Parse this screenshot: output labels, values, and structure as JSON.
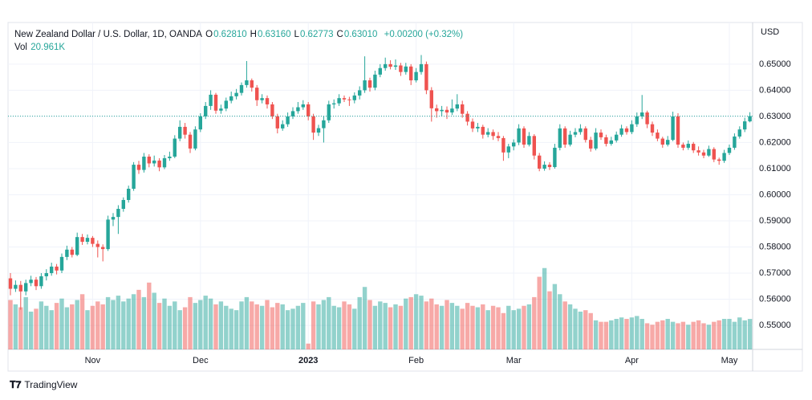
{
  "chart_data": {
    "type": "candlestick",
    "title": "New Zealand Dollar / U.S. Dollar, 1D, OANDA",
    "summary": [
      {
        "label": "O",
        "value": "0.62810"
      },
      {
        "label": "H",
        "value": "0.63160"
      },
      {
        "label": "L",
        "value": "0.62773"
      },
      {
        "label": "C",
        "value": "0.63010"
      }
    ],
    "change": "+0.00200 (+0.32%)",
    "volume_name": "Vol",
    "volume_value": "20.961K",
    "y_axis_label": "USD",
    "colors": {
      "up": "#26a69a",
      "down": "#ef5350"
    },
    "grid": true,
    "ylim": [
      0.5408,
      0.6598
    ],
    "yticks": [
      {
        "value": 0.55,
        "label": "0.55000"
      },
      {
        "value": 0.56,
        "label": "0.56000"
      },
      {
        "value": 0.57,
        "label": "0.57000"
      },
      {
        "value": 0.58,
        "label": "0.58000"
      },
      {
        "value": 0.59,
        "label": "0.59000"
      },
      {
        "value": 0.6,
        "label": "0.60000"
      },
      {
        "value": 0.61,
        "label": "0.61000"
      },
      {
        "value": 0.62,
        "label": "0.62000"
      },
      {
        "value": 0.63,
        "label": "0.63000"
      },
      {
        "value": 0.64,
        "label": "0.64000"
      },
      {
        "value": 0.65,
        "label": "0.65000"
      }
    ],
    "y2lim": [
      0,
      214
    ],
    "categories": [
      null,
      null,
      null,
      null,
      null,
      null,
      null,
      null,
      null,
      null,
      null,
      null,
      null,
      null,
      null,
      null,
      "Nov",
      null,
      null,
      null,
      null,
      null,
      null,
      null,
      null,
      null,
      null,
      null,
      null,
      null,
      null,
      null,
      null,
      null,
      null,
      null,
      null,
      "Dec",
      null,
      null,
      null,
      null,
      null,
      null,
      null,
      null,
      null,
      null,
      null,
      null,
      null,
      null,
      null,
      null,
      null,
      null,
      null,
      null,
      "2023",
      null,
      null,
      null,
      null,
      null,
      null,
      null,
      null,
      null,
      null,
      null,
      null,
      null,
      null,
      null,
      null,
      null,
      null,
      null,
      null,
      "Feb",
      null,
      null,
      null,
      null,
      null,
      null,
      null,
      null,
      null,
      null,
      null,
      null,
      null,
      null,
      null,
      null,
      null,
      null,
      "Mar",
      null,
      null,
      null,
      null,
      null,
      null,
      null,
      null,
      null,
      null,
      null,
      null,
      null,
      null,
      null,
      null,
      null,
      null,
      null,
      null,
      null,
      null,
      "Apr",
      null,
      null,
      null,
      null,
      null,
      null,
      null,
      null,
      null,
      null,
      null,
      null,
      null,
      null,
      null,
      null,
      null,
      null,
      "May",
      null,
      null,
      null,
      null
    ],
    "ohlc": [
      [
        0.568,
        0.57,
        0.5615,
        0.564
      ],
      [
        0.564,
        0.5672,
        0.5628,
        0.5655
      ],
      [
        0.5655,
        0.567,
        0.556,
        0.563
      ],
      [
        0.563,
        0.5675,
        0.5615,
        0.5662
      ],
      [
        0.5662,
        0.569,
        0.565,
        0.5675
      ],
      [
        0.5675,
        0.5685,
        0.5635,
        0.565
      ],
      [
        0.565,
        0.57,
        0.564,
        0.5688
      ],
      [
        0.5688,
        0.5715,
        0.5672,
        0.57
      ],
      [
        0.57,
        0.574,
        0.569,
        0.5725
      ],
      [
        0.5725,
        0.5735,
        0.5695,
        0.571
      ],
      [
        0.571,
        0.5775,
        0.57,
        0.5762
      ],
      [
        0.5762,
        0.5805,
        0.575,
        0.579
      ],
      [
        0.579,
        0.58,
        0.576,
        0.577
      ],
      [
        0.577,
        0.5855,
        0.5765,
        0.5838
      ],
      [
        0.5838,
        0.585,
        0.5808,
        0.582
      ],
      [
        0.582,
        0.5848,
        0.581,
        0.5835
      ],
      [
        0.5835,
        0.5842,
        0.58,
        0.5812
      ],
      [
        0.5812,
        0.5825,
        0.576,
        0.58
      ],
      [
        0.58,
        0.581,
        0.5745,
        0.5792
      ],
      [
        0.5792,
        0.592,
        0.5785,
        0.5905
      ],
      [
        0.5905,
        0.593,
        0.588,
        0.5915
      ],
      [
        0.5915,
        0.596,
        0.585,
        0.5946
      ],
      [
        0.5946,
        0.599,
        0.5935,
        0.598
      ],
      [
        0.598,
        0.6035,
        0.597,
        0.6023
      ],
      [
        0.6023,
        0.6125,
        0.6015,
        0.6115
      ],
      [
        0.6115,
        0.613,
        0.608,
        0.6095
      ],
      [
        0.6095,
        0.616,
        0.6085,
        0.6146
      ],
      [
        0.6146,
        0.6155,
        0.6105,
        0.612
      ],
      [
        0.612,
        0.615,
        0.6108,
        0.6131
      ],
      [
        0.6131,
        0.614,
        0.609,
        0.6105
      ],
      [
        0.6105,
        0.6152,
        0.6098,
        0.614
      ],
      [
        0.614,
        0.6165,
        0.613,
        0.6146
      ],
      [
        0.6146,
        0.6228,
        0.614,
        0.6215
      ],
      [
        0.6215,
        0.6285,
        0.6205,
        0.626
      ],
      [
        0.626,
        0.6275,
        0.6215,
        0.623
      ],
      [
        0.623,
        0.624,
        0.616,
        0.6177
      ],
      [
        0.6177,
        0.6262,
        0.617,
        0.625
      ],
      [
        0.625,
        0.6312,
        0.624,
        0.63
      ],
      [
        0.63,
        0.6355,
        0.629,
        0.634
      ],
      [
        0.634,
        0.64,
        0.6325,
        0.6383
      ],
      [
        0.6383,
        0.639,
        0.631,
        0.6322
      ],
      [
        0.6322,
        0.6345,
        0.631,
        0.633
      ],
      [
        0.633,
        0.6372,
        0.632,
        0.636
      ],
      [
        0.636,
        0.6395,
        0.635,
        0.6377
      ],
      [
        0.6377,
        0.6405,
        0.6365,
        0.639
      ],
      [
        0.639,
        0.643,
        0.638,
        0.642
      ],
      [
        0.642,
        0.6512,
        0.641,
        0.6438
      ],
      [
        0.6438,
        0.6445,
        0.6395,
        0.641
      ],
      [
        0.641,
        0.642,
        0.634,
        0.6362
      ],
      [
        0.6362,
        0.6385,
        0.635,
        0.637
      ],
      [
        0.637,
        0.638,
        0.633,
        0.6346
      ],
      [
        0.6346,
        0.6355,
        0.629,
        0.63
      ],
      [
        0.63,
        0.631,
        0.6235,
        0.6254
      ],
      [
        0.6254,
        0.6285,
        0.6245,
        0.627
      ],
      [
        0.627,
        0.6315,
        0.626,
        0.63
      ],
      [
        0.63,
        0.6335,
        0.629,
        0.632
      ],
      [
        0.632,
        0.6355,
        0.631,
        0.6335
      ],
      [
        0.6335,
        0.6362,
        0.6325,
        0.6346
      ],
      [
        0.6346,
        0.6355,
        0.6285,
        0.63
      ],
      [
        0.63,
        0.631,
        0.621,
        0.6238
      ],
      [
        0.6238,
        0.6268,
        0.6225,
        0.6255
      ],
      [
        0.6255,
        0.63,
        0.62,
        0.6285
      ],
      [
        0.6285,
        0.636,
        0.6275,
        0.6346
      ],
      [
        0.6346,
        0.6365,
        0.633,
        0.635
      ],
      [
        0.635,
        0.6385,
        0.634,
        0.637
      ],
      [
        0.637,
        0.638,
        0.6355,
        0.6365
      ],
      [
        0.6365,
        0.6375,
        0.634,
        0.6362
      ],
      [
        0.6362,
        0.6392,
        0.635,
        0.638
      ],
      [
        0.638,
        0.6415,
        0.6365,
        0.64
      ],
      [
        0.64,
        0.653,
        0.639,
        0.6438
      ],
      [
        0.6438,
        0.6448,
        0.6395,
        0.641
      ],
      [
        0.641,
        0.6475,
        0.64,
        0.646
      ],
      [
        0.646,
        0.65,
        0.645,
        0.6485
      ],
      [
        0.6485,
        0.6525,
        0.6475,
        0.65
      ],
      [
        0.65,
        0.6515,
        0.648,
        0.649
      ],
      [
        0.649,
        0.6518,
        0.6478,
        0.6495
      ],
      [
        0.6495,
        0.6505,
        0.6455,
        0.647
      ],
      [
        0.647,
        0.6505,
        0.646,
        0.6491
      ],
      [
        0.6491,
        0.65,
        0.642,
        0.6438
      ],
      [
        0.6438,
        0.6485,
        0.643,
        0.647
      ],
      [
        0.647,
        0.6535,
        0.646,
        0.65
      ],
      [
        0.65,
        0.651,
        0.6385,
        0.64
      ],
      [
        0.64,
        0.6412,
        0.628,
        0.6331
      ],
      [
        0.6331,
        0.6345,
        0.6295,
        0.632
      ],
      [
        0.632,
        0.634,
        0.63,
        0.6325
      ],
      [
        0.6325,
        0.6338,
        0.629,
        0.6315
      ],
      [
        0.6315,
        0.6365,
        0.6305,
        0.633
      ],
      [
        0.633,
        0.6385,
        0.632,
        0.6346
      ],
      [
        0.6346,
        0.636,
        0.6295,
        0.631
      ],
      [
        0.631,
        0.632,
        0.6265,
        0.628
      ],
      [
        0.628,
        0.6292,
        0.624,
        0.6254
      ],
      [
        0.6254,
        0.6275,
        0.624,
        0.626
      ],
      [
        0.626,
        0.6268,
        0.6215,
        0.623
      ],
      [
        0.623,
        0.6255,
        0.622,
        0.624
      ],
      [
        0.624,
        0.625,
        0.621,
        0.6225
      ],
      [
        0.6225,
        0.624,
        0.6205,
        0.6217
      ],
      [
        0.6217,
        0.6225,
        0.613,
        0.6162
      ],
      [
        0.6162,
        0.6195,
        0.614,
        0.6185
      ],
      [
        0.6185,
        0.6212,
        0.617,
        0.62
      ],
      [
        0.62,
        0.627,
        0.619,
        0.6254
      ],
      [
        0.6254,
        0.6262,
        0.618,
        0.6192
      ],
      [
        0.6192,
        0.624,
        0.6185,
        0.6225
      ],
      [
        0.6225,
        0.6232,
        0.6135,
        0.615
      ],
      [
        0.615,
        0.616,
        0.609,
        0.61
      ],
      [
        0.61,
        0.6128,
        0.6092,
        0.6115
      ],
      [
        0.6115,
        0.6125,
        0.6095,
        0.6106
      ],
      [
        0.6106,
        0.6195,
        0.61,
        0.618
      ],
      [
        0.618,
        0.627,
        0.617,
        0.6254
      ],
      [
        0.6254,
        0.6262,
        0.618,
        0.6192
      ],
      [
        0.6192,
        0.6245,
        0.6185,
        0.623
      ],
      [
        0.623,
        0.6255,
        0.622,
        0.624
      ],
      [
        0.624,
        0.627,
        0.623,
        0.6254
      ],
      [
        0.6254,
        0.6262,
        0.62,
        0.621
      ],
      [
        0.621,
        0.6222,
        0.6165,
        0.6177
      ],
      [
        0.6177,
        0.6255,
        0.617,
        0.6238
      ],
      [
        0.6238,
        0.625,
        0.621,
        0.622
      ],
      [
        0.622,
        0.623,
        0.6185,
        0.6195
      ],
      [
        0.6195,
        0.6222,
        0.6188,
        0.6208
      ],
      [
        0.6208,
        0.6242,
        0.62,
        0.623
      ],
      [
        0.623,
        0.6268,
        0.6222,
        0.6254
      ],
      [
        0.6254,
        0.6262,
        0.623,
        0.624
      ],
      [
        0.624,
        0.6285,
        0.6232,
        0.627
      ],
      [
        0.627,
        0.6315,
        0.626,
        0.63
      ],
      [
        0.63,
        0.6382,
        0.629,
        0.6315
      ],
      [
        0.6315,
        0.6322,
        0.6255,
        0.627
      ],
      [
        0.627,
        0.628,
        0.6225,
        0.6238
      ],
      [
        0.6238,
        0.625,
        0.6205,
        0.6215
      ],
      [
        0.6215,
        0.6222,
        0.618,
        0.6192
      ],
      [
        0.6192,
        0.6225,
        0.6185,
        0.621
      ],
      [
        0.621,
        0.6318,
        0.6205,
        0.63
      ],
      [
        0.63,
        0.6312,
        0.618,
        0.6192
      ],
      [
        0.6192,
        0.62,
        0.617,
        0.618
      ],
      [
        0.618,
        0.6208,
        0.6172,
        0.6195
      ],
      [
        0.6195,
        0.6202,
        0.616,
        0.617
      ],
      [
        0.617,
        0.6185,
        0.615,
        0.6162
      ],
      [
        0.6162,
        0.6172,
        0.614,
        0.615
      ],
      [
        0.615,
        0.6188,
        0.6145,
        0.6175
      ],
      [
        0.6175,
        0.6182,
        0.6125,
        0.6135
      ],
      [
        0.6135,
        0.6142,
        0.6115,
        0.613
      ],
      [
        0.613,
        0.6172,
        0.6122,
        0.616
      ],
      [
        0.616,
        0.6192,
        0.6152,
        0.618
      ],
      [
        0.618,
        0.6235,
        0.6172,
        0.6223
      ],
      [
        0.6223,
        0.6262,
        0.6215,
        0.625
      ],
      [
        0.625,
        0.6295,
        0.624,
        0.6281
      ],
      [
        0.6281,
        0.6316,
        0.62773,
        0.6301
      ]
    ],
    "volumes": [
      34,
      31,
      29,
      36,
      26,
      28,
      33,
      30,
      27,
      32,
      35,
      29,
      31,
      34,
      38,
      27,
      30,
      33,
      31,
      36,
      34,
      37,
      33,
      35,
      38,
      41,
      36,
      46,
      39,
      32,
      35,
      30,
      33,
      27,
      29,
      36,
      32,
      34,
      37,
      35,
      31,
      33,
      30,
      28,
      27,
      33,
      36,
      33,
      31,
      30,
      34,
      29,
      32,
      31,
      27,
      28,
      30,
      32,
      4,
      33,
      31,
      34,
      36,
      30,
      29,
      33,
      31,
      28,
      36,
      43,
      34,
      30,
      33,
      32,
      29,
      31,
      30,
      35,
      36,
      38,
      37,
      33,
      35,
      31,
      30,
      34,
      32,
      30,
      28,
      32,
      30,
      29,
      31,
      27,
      30,
      29,
      25,
      30,
      27,
      28,
      30,
      31,
      36,
      50,
      56,
      40,
      45,
      38,
      33,
      31,
      28,
      26,
      27,
      25,
      20,
      19,
      19,
      20,
      21,
      22,
      21,
      22,
      23,
      21,
      18,
      17,
      19,
      20,
      21,
      19,
      18,
      19,
      17,
      19,
      20,
      18,
      17,
      19,
      20,
      21,
      21,
      19,
      22,
      20,
      20.961
    ]
  },
  "branding": "TradingView"
}
